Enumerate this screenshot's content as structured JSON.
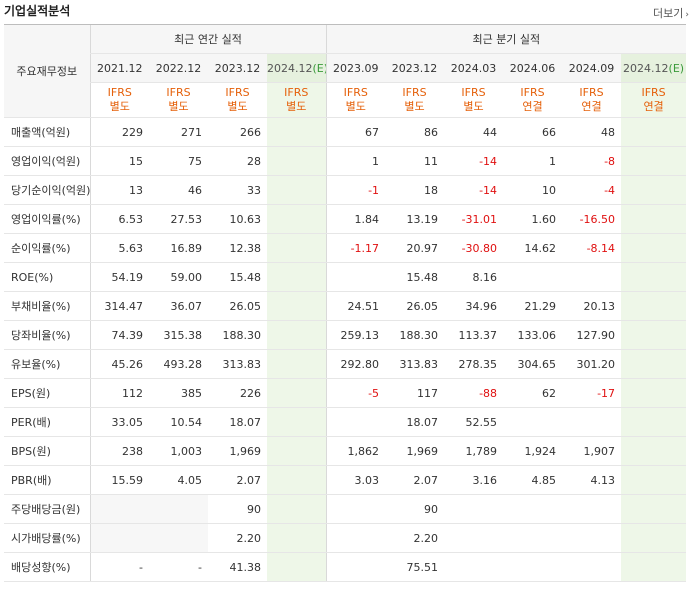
{
  "header": {
    "title": "기업실적분석",
    "more_label": "더보기",
    "more_arrow": "›"
  },
  "table": {
    "row_header_label": "주요재무정보",
    "group_annual": "최근 연간 실적",
    "group_quarter": "최근 분기 실적",
    "periods": [
      "2021.12",
      "2022.12",
      "2023.12",
      "2024.12",
      "2023.09",
      "2023.12",
      "2024.03",
      "2024.06",
      "2024.09",
      "2024.12"
    ],
    "estimate_marker": "(E)",
    "standards": [
      [
        "IFRS",
        "별도"
      ],
      [
        "IFRS",
        "별도"
      ],
      [
        "IFRS",
        "별도"
      ],
      [
        "IFRS",
        "별도"
      ],
      [
        "IFRS",
        "별도"
      ],
      [
        "IFRS",
        "별도"
      ],
      [
        "IFRS",
        "별도"
      ],
      [
        "IFRS",
        "연결"
      ],
      [
        "IFRS",
        "연결"
      ],
      [
        "IFRS",
        "연결"
      ]
    ],
    "rows": [
      {
        "label": "매출액(억원)",
        "values": [
          "229",
          "271",
          "266",
          "",
          "67",
          "86",
          "44",
          "66",
          "48",
          ""
        ]
      },
      {
        "label": "영업이익(억원)",
        "values": [
          "15",
          "75",
          "28",
          "",
          "1",
          "11",
          "-14",
          "1",
          "-8",
          ""
        ]
      },
      {
        "label": "당기순이익(억원)",
        "values": [
          "13",
          "46",
          "33",
          "",
          "-1",
          "18",
          "-14",
          "10",
          "-4",
          ""
        ]
      },
      {
        "label": "영업이익률(%)",
        "values": [
          "6.53",
          "27.53",
          "10.63",
          "",
          "1.84",
          "13.19",
          "-31.01",
          "1.60",
          "-16.50",
          ""
        ]
      },
      {
        "label": "순이익률(%)",
        "values": [
          "5.63",
          "16.89",
          "12.38",
          "",
          "-1.17",
          "20.97",
          "-30.80",
          "14.62",
          "-8.14",
          ""
        ]
      },
      {
        "label": "ROE(%)",
        "values": [
          "54.19",
          "59.00",
          "15.48",
          "",
          "",
          "15.48",
          "8.16",
          "",
          "",
          ""
        ]
      },
      {
        "label": "부채비율(%)",
        "values": [
          "314.47",
          "36.07",
          "26.05",
          "",
          "24.51",
          "26.05",
          "34.96",
          "21.29",
          "20.13",
          ""
        ]
      },
      {
        "label": "당좌비율(%)",
        "values": [
          "74.39",
          "315.38",
          "188.30",
          "",
          "259.13",
          "188.30",
          "113.37",
          "133.06",
          "127.90",
          ""
        ]
      },
      {
        "label": "유보율(%)",
        "values": [
          "45.26",
          "493.28",
          "313.83",
          "",
          "292.80",
          "313.83",
          "278.35",
          "304.65",
          "301.20",
          ""
        ]
      },
      {
        "label": "EPS(원)",
        "values": [
          "112",
          "385",
          "226",
          "",
          "-5",
          "117",
          "-88",
          "62",
          "-17",
          ""
        ]
      },
      {
        "label": "PER(배)",
        "values": [
          "33.05",
          "10.54",
          "18.07",
          "",
          "",
          "18.07",
          "52.55",
          "",
          "",
          ""
        ]
      },
      {
        "label": "BPS(원)",
        "values": [
          "238",
          "1,003",
          "1,969",
          "",
          "1,862",
          "1,969",
          "1,789",
          "1,924",
          "1,907",
          ""
        ]
      },
      {
        "label": "PBR(배)",
        "values": [
          "15.59",
          "4.05",
          "2.07",
          "",
          "3.03",
          "2.07",
          "3.16",
          "4.85",
          "4.13",
          ""
        ]
      },
      {
        "label": "주당배당금(원)",
        "values": [
          "",
          "",
          "90",
          "",
          "",
          "90",
          "",
          "",
          "",
          ""
        ]
      },
      {
        "label": "시가배당률(%)",
        "values": [
          "",
          "",
          "2.20",
          "",
          "",
          "2.20",
          "",
          "",
          "",
          ""
        ]
      },
      {
        "label": "배당성향(%)",
        "values": [
          "-",
          "-",
          "41.38",
          "",
          "",
          "75.51",
          "",
          "",
          "",
          ""
        ]
      }
    ]
  },
  "colors": {
    "negative": "#e01010",
    "standard": "#e5600a",
    "estimate_bg": "#eef7e8",
    "estimate_marker": "#3a9a3a"
  }
}
